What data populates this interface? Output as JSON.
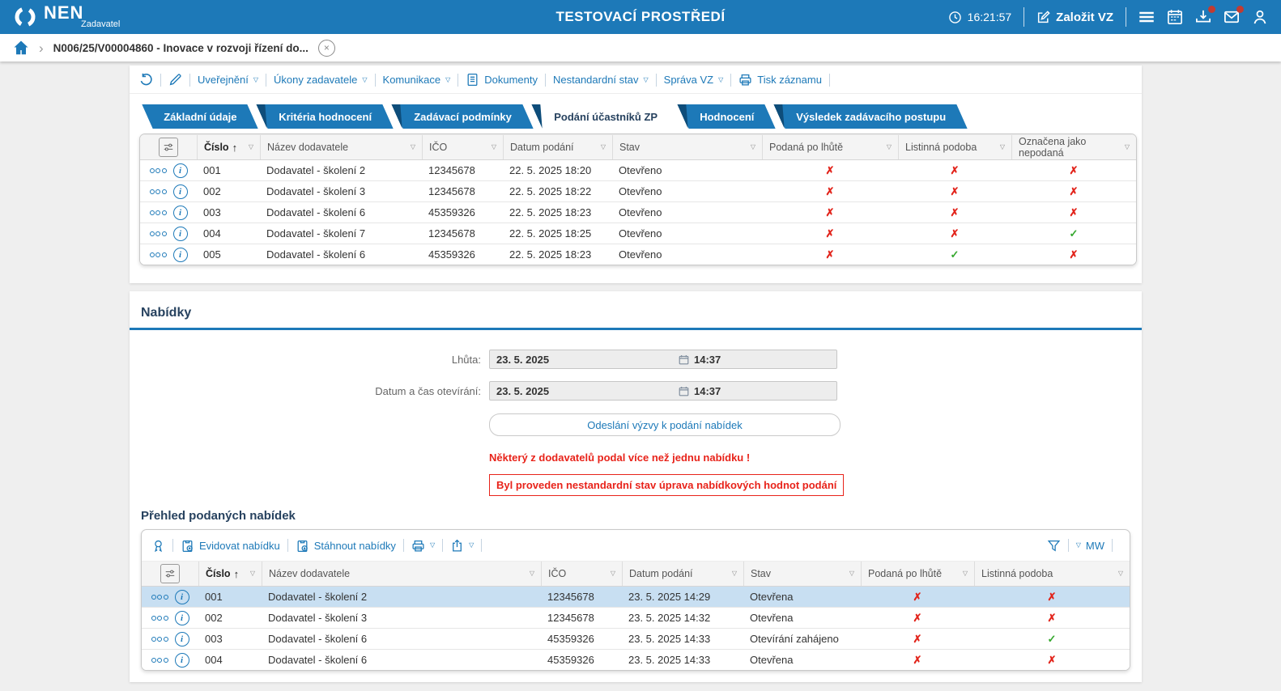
{
  "colors": {
    "accent": "#1d79b8",
    "navy": "#27425f",
    "red": "#e2231a",
    "green": "#35a82e",
    "selected_row": "#c8dff2",
    "fold": "#0e4d7a"
  },
  "icons": {
    "caret": "▽",
    "sort_asc": "↑",
    "check": "✓",
    "cross": "✗",
    "chevron": "›",
    "close": "×"
  },
  "topbar": {
    "brand": "NEN",
    "brand_sub": "Zadavatel",
    "env_title": "TESTOVACÍ PROSTŘEDÍ",
    "time": "16:21:57",
    "create_vz": "Založit VZ"
  },
  "breadcrumb": {
    "item": "N006/25/V00004860 - Inovace v rozvoji řízení do..."
  },
  "record_toolbar": {
    "items": [
      {
        "name": "undo-button",
        "icon": "undo-icon"
      },
      {
        "name": "edit-button",
        "icon": "pencil-icon"
      },
      {
        "name": "menu-uverejneni",
        "label": "Uveřejnění",
        "dropdown": true
      },
      {
        "name": "menu-ukony-zadavatele",
        "label": "Úkony zadavatele",
        "dropdown": true
      },
      {
        "name": "menu-komunikace",
        "label": "Komunikace",
        "dropdown": true
      },
      {
        "name": "menu-dokumenty",
        "label": "Dokumenty",
        "icon": "document-icon"
      },
      {
        "name": "menu-nestandardni-stav",
        "label": "Nestandardní stav",
        "dropdown": true
      },
      {
        "name": "menu-sprava-vz",
        "label": "Správa VZ",
        "dropdown": true
      },
      {
        "name": "menu-tisk-zaznamu",
        "label": "Tisk záznamu",
        "icon": "printer-icon"
      }
    ]
  },
  "tabs": [
    {
      "label": "Základní údaje",
      "active": false
    },
    {
      "label": "Kritéria hodnocení",
      "active": false
    },
    {
      "label": "Zadávací podmínky",
      "active": false
    },
    {
      "label": "Podání účastníků ZP",
      "active": true
    },
    {
      "label": "Hodnocení",
      "active": false
    },
    {
      "label": "Výsledek zadávacího postupu",
      "active": false
    }
  ],
  "podani_table": {
    "columns": [
      "Číslo",
      "Název dodavatele",
      "IČO",
      "Datum podání",
      "Stav",
      "Podaná po lhůtě",
      "Listinná podoba",
      "Označena jako nepodaná"
    ],
    "rows": [
      {
        "cislo": "001",
        "nazev": "Dodavatel - školení 2",
        "ico": "12345678",
        "datum": "22. 5. 2025 18:20",
        "stav": "Otevřeno",
        "po_lhute": false,
        "listinna": false,
        "nepodana": false
      },
      {
        "cislo": "002",
        "nazev": "Dodavatel - školení 3",
        "ico": "12345678",
        "datum": "22. 5. 2025 18:22",
        "stav": "Otevřeno",
        "po_lhute": false,
        "listinna": false,
        "nepodana": false
      },
      {
        "cislo": "003",
        "nazev": "Dodavatel - školení 6",
        "ico": "45359326",
        "datum": "22. 5. 2025 18:23",
        "stav": "Otevřeno",
        "po_lhute": false,
        "listinna": false,
        "nepodana": false
      },
      {
        "cislo": "004",
        "nazev": "Dodavatel - školení 7",
        "ico": "12345678",
        "datum": "22. 5. 2025 18:25",
        "stav": "Otevřeno",
        "po_lhute": false,
        "listinna": false,
        "nepodana": true
      },
      {
        "cislo": "005",
        "nazev": "Dodavatel - školení 6",
        "ico": "45359326",
        "datum": "22. 5. 2025 18:23",
        "stav": "Otevřeno",
        "po_lhute": false,
        "listinna": true,
        "nepodana": false
      }
    ]
  },
  "nabidky": {
    "title": "Nabídky",
    "fields": [
      {
        "label": "Lhůta:",
        "date": "23. 5. 2025",
        "time": "14:37"
      },
      {
        "label": "Datum a čas otevírání:",
        "date": "23. 5. 2025",
        "time": "14:37"
      }
    ],
    "button": "Odeslání výzvy k podání nabídek",
    "warning1": "Některý z dodavatelů podal více než jednu nabídku !",
    "warning2": "Byl proveden nestandardní stav úprava nabídkových hodnot podání"
  },
  "prehled": {
    "title": "Přehled podaných nabídek",
    "toolbar": {
      "items": [
        {
          "name": "record-audit-button",
          "icon": "medal-icon"
        },
        {
          "name": "evidovat-nabidku-button",
          "label": "Evidovat nabídku",
          "icon": "clipboard-plus-icon"
        },
        {
          "name": "stahnout-nabidky-button",
          "label": "Stáhnout nabídky",
          "icon": "clipboard-down-icon"
        },
        {
          "name": "print-button",
          "icon": "printer-icon",
          "dropdown": true
        },
        {
          "name": "export-button",
          "icon": "share-icon",
          "dropdown": true
        }
      ],
      "mw_label": "MW"
    },
    "columns": [
      "Číslo",
      "Název dodavatele",
      "IČO",
      "Datum podání",
      "Stav",
      "Podaná po lhůtě",
      "Listinná podoba"
    ],
    "rows": [
      {
        "cislo": "001",
        "nazev": "Dodavatel - školení 2",
        "ico": "12345678",
        "datum": "23. 5. 2025 14:29",
        "stav": "Otevřena",
        "po_lhute": false,
        "listinna": false,
        "selected": true
      },
      {
        "cislo": "002",
        "nazev": "Dodavatel - školení 3",
        "ico": "12345678",
        "datum": "23. 5. 2025 14:32",
        "stav": "Otevřena",
        "po_lhute": false,
        "listinna": false,
        "selected": false
      },
      {
        "cislo": "003",
        "nazev": "Dodavatel - školení 6",
        "ico": "45359326",
        "datum": "23. 5. 2025 14:33",
        "stav": "Otevírání zahájeno",
        "po_lhute": false,
        "listinna": true,
        "selected": false
      },
      {
        "cislo": "004",
        "nazev": "Dodavatel - školení 6",
        "ico": "45359326",
        "datum": "23. 5. 2025 14:33",
        "stav": "Otevřena",
        "po_lhute": false,
        "listinna": false,
        "selected": false
      }
    ]
  }
}
